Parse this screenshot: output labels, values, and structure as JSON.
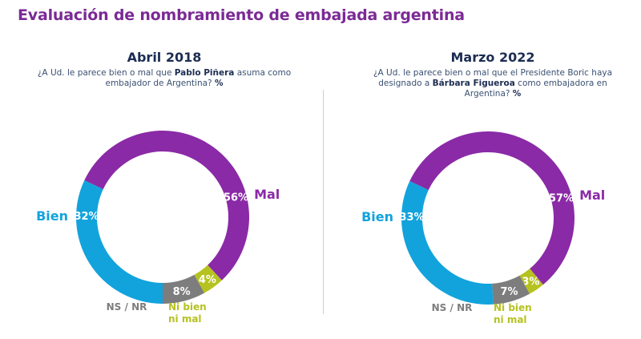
{
  "title": "Evaluación de nombramiento de embajada argentina",
  "colors": {
    "title": "#7b2a95",
    "heading": "#1c2d52",
    "mal": "#8a2aa6",
    "bien": "#12a3dc",
    "ns_nr": "#7d7d7d",
    "ni_bien_ni_mal": "#b6c21f"
  },
  "panels": [
    {
      "heading": "Abril 2018",
      "question_pre": "¿A Ud. le parece bien o mal que ",
      "question_bold": "Pablo Piñera",
      "question_post": " asuma como embajador de Argentina?",
      "question_unit": "%"
    },
    {
      "heading": "Marzo 2022",
      "question_pre": "¿A Ud. le parece bien o mal que el Presidente Boric haya designado a ",
      "question_bold": "Bárbara Figueroa",
      "question_post": " como embajadora en Argentina?",
      "question_unit": "%"
    }
  ],
  "chart_data": [
    {
      "type": "pie",
      "subtype": "donut",
      "title": "Abril 2018",
      "categories": [
        "Mal",
        "Ni bien ni mal",
        "NS / NR",
        "Bien"
      ],
      "values": [
        56,
        4,
        8,
        32
      ],
      "value_labels": [
        "56%",
        "4%",
        "8%",
        "32%"
      ],
      "category_labels": [
        "Mal",
        "Ni bien\nni mal",
        "NS / NR",
        "Bien"
      ],
      "unit": "%"
    },
    {
      "type": "pie",
      "subtype": "donut",
      "title": "Marzo 2022",
      "categories": [
        "Mal",
        "Ni bien ni mal",
        "NS / NR",
        "Bien"
      ],
      "values": [
        57,
        3,
        7,
        33
      ],
      "value_labels": [
        "57%",
        "3%",
        "7%",
        "33%"
      ],
      "category_labels": [
        "Mal",
        "Ni bien\nni mal",
        "NS / NR",
        "Bien"
      ],
      "unit": "%"
    }
  ]
}
